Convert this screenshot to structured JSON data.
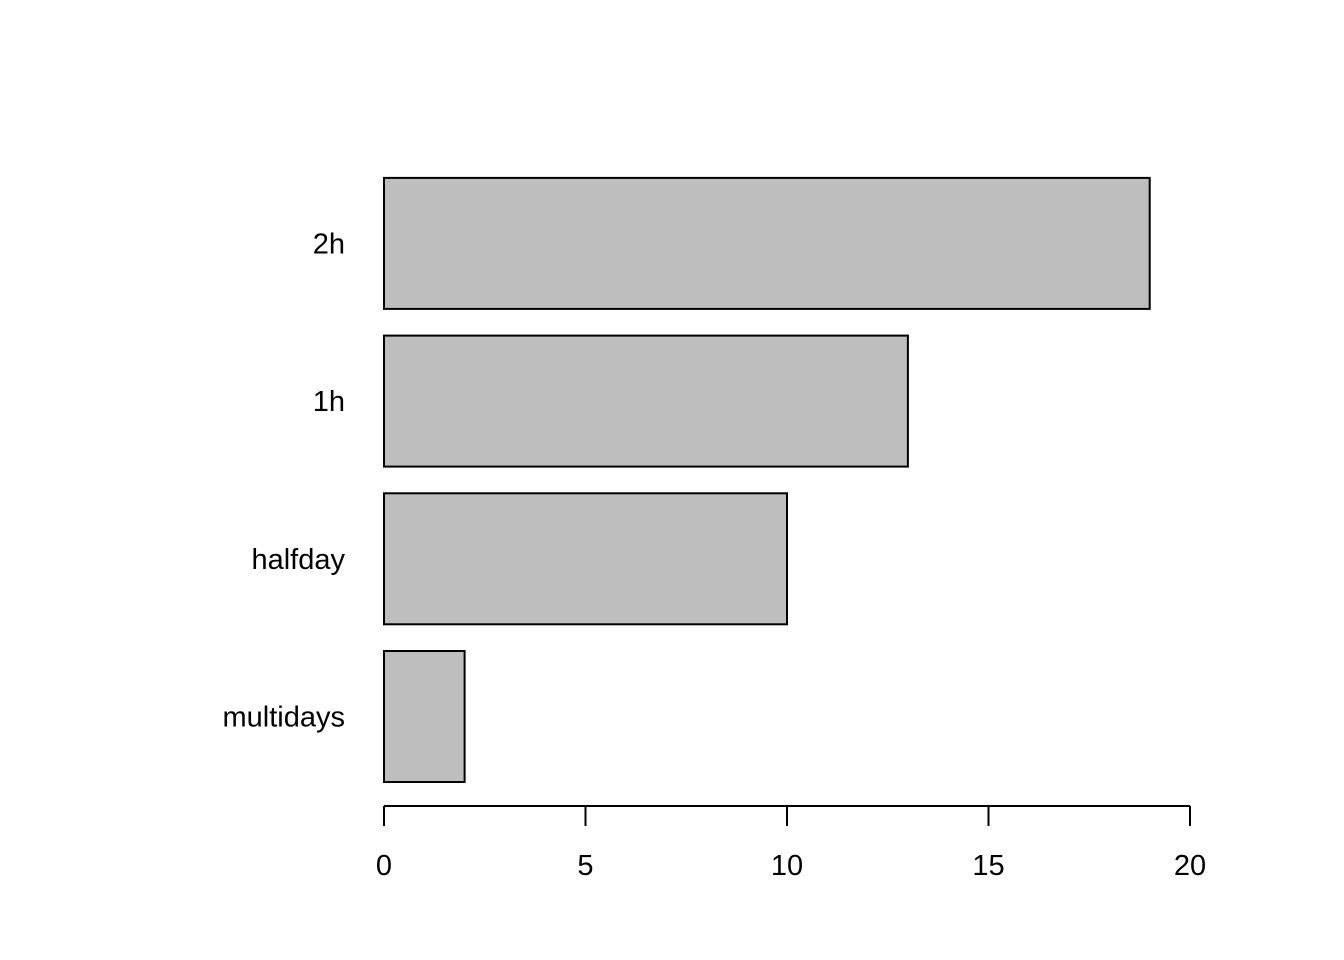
{
  "chart_data": {
    "type": "bar",
    "orientation": "horizontal",
    "categories": [
      "multidays",
      "halfday",
      "1h",
      "2h"
    ],
    "values": [
      2,
      10,
      13,
      19
    ],
    "title": "",
    "xlabel": "",
    "ylabel": "",
    "xlim": [
      0,
      20
    ],
    "x_ticks": [
      0,
      5,
      10,
      15,
      20
    ],
    "x_tick_labels": [
      "0",
      "5",
      "10",
      "15",
      "20"
    ],
    "grid": false,
    "legend": "none",
    "bar_color": "#bebebe",
    "border_color": "#000000"
  }
}
